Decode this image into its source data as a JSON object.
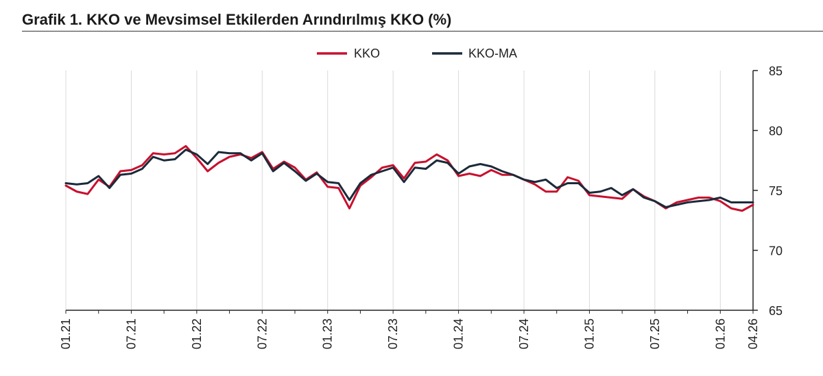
{
  "chart_data": {
    "type": "line",
    "title": "Grafik 1. KKO ve Mevsimsel Etkilerden Arındırılmış KKO (%)",
    "xlabel": "",
    "ylabel": "",
    "ylim": [
      65,
      85
    ],
    "yticks": [
      "65",
      "70",
      "75",
      "80",
      "85"
    ],
    "y_axis_position": "right",
    "grid": "vertical",
    "legend_position": "top-center",
    "xtick_labels": [
      "01.21",
      "07.21",
      "01.22",
      "07.22",
      "01.23",
      "07.23",
      "01.24",
      "07.24",
      "01.25",
      "07.25",
      "01.26",
      "04.26"
    ],
    "x": [
      "01.21",
      "02.21",
      "03.21",
      "04.21",
      "05.21",
      "06.21",
      "07.21",
      "08.21",
      "09.21",
      "10.21",
      "11.21",
      "12.21",
      "01.22",
      "02.22",
      "03.22",
      "04.22",
      "05.22",
      "06.22",
      "07.22",
      "08.22",
      "09.22",
      "10.22",
      "11.22",
      "12.22",
      "01.23",
      "02.23",
      "03.23",
      "04.23",
      "05.23",
      "06.23",
      "07.23",
      "08.23",
      "09.23",
      "10.23",
      "11.23",
      "12.23",
      "01.24",
      "02.24",
      "03.24",
      "04.24",
      "05.24",
      "06.24",
      "07.24",
      "08.24",
      "09.24",
      "10.24",
      "11.24",
      "12.24",
      "01.25",
      "02.25",
      "03.25",
      "04.25",
      "05.25",
      "06.25",
      "07.25",
      "08.25",
      "09.25",
      "10.25",
      "11.25",
      "12.25",
      "01.26",
      "02.26",
      "03.26",
      "04.26"
    ],
    "series": [
      {
        "name": "KKO",
        "color": "#c8102e",
        "values": [
          75.4,
          74.9,
          74.7,
          75.9,
          75.3,
          76.6,
          76.7,
          77.1,
          78.1,
          78.0,
          78.1,
          78.7,
          77.7,
          76.6,
          77.3,
          77.8,
          78.0,
          77.7,
          78.2,
          76.8,
          77.4,
          76.9,
          75.9,
          76.5,
          75.3,
          75.2,
          73.5,
          75.4,
          76.1,
          76.9,
          77.1,
          76.0,
          77.3,
          77.4,
          78.0,
          77.5,
          76.2,
          76.4,
          76.2,
          76.7,
          76.3,
          76.3,
          75.9,
          75.5,
          74.9,
          74.9,
          76.1,
          75.8,
          74.6,
          74.5,
          74.4,
          74.3,
          75.1,
          74.5,
          74.1,
          73.5,
          74.0,
          74.2,
          74.4,
          74.4,
          74.1,
          73.5,
          73.3,
          73.8
        ]
      },
      {
        "name": "KKO-MA",
        "color": "#1b2a3a",
        "values": [
          75.6,
          75.5,
          75.6,
          76.2,
          75.2,
          76.3,
          76.4,
          76.8,
          77.8,
          77.5,
          77.6,
          78.4,
          78.0,
          77.2,
          78.2,
          78.1,
          78.1,
          77.5,
          78.1,
          76.6,
          77.3,
          76.6,
          75.8,
          76.4,
          75.7,
          75.6,
          74.2,
          75.6,
          76.3,
          76.6,
          76.9,
          75.7,
          76.9,
          76.8,
          77.5,
          77.3,
          76.4,
          77.0,
          77.2,
          77.0,
          76.6,
          76.3,
          75.9,
          75.7,
          75.9,
          75.2,
          75.6,
          75.6,
          74.8,
          74.9,
          75.2,
          74.6,
          75.1,
          74.4,
          74.1,
          73.6,
          73.8,
          74.0,
          74.1,
          74.2,
          74.4,
          74.0,
          74.0,
          74.0
        ]
      }
    ]
  }
}
